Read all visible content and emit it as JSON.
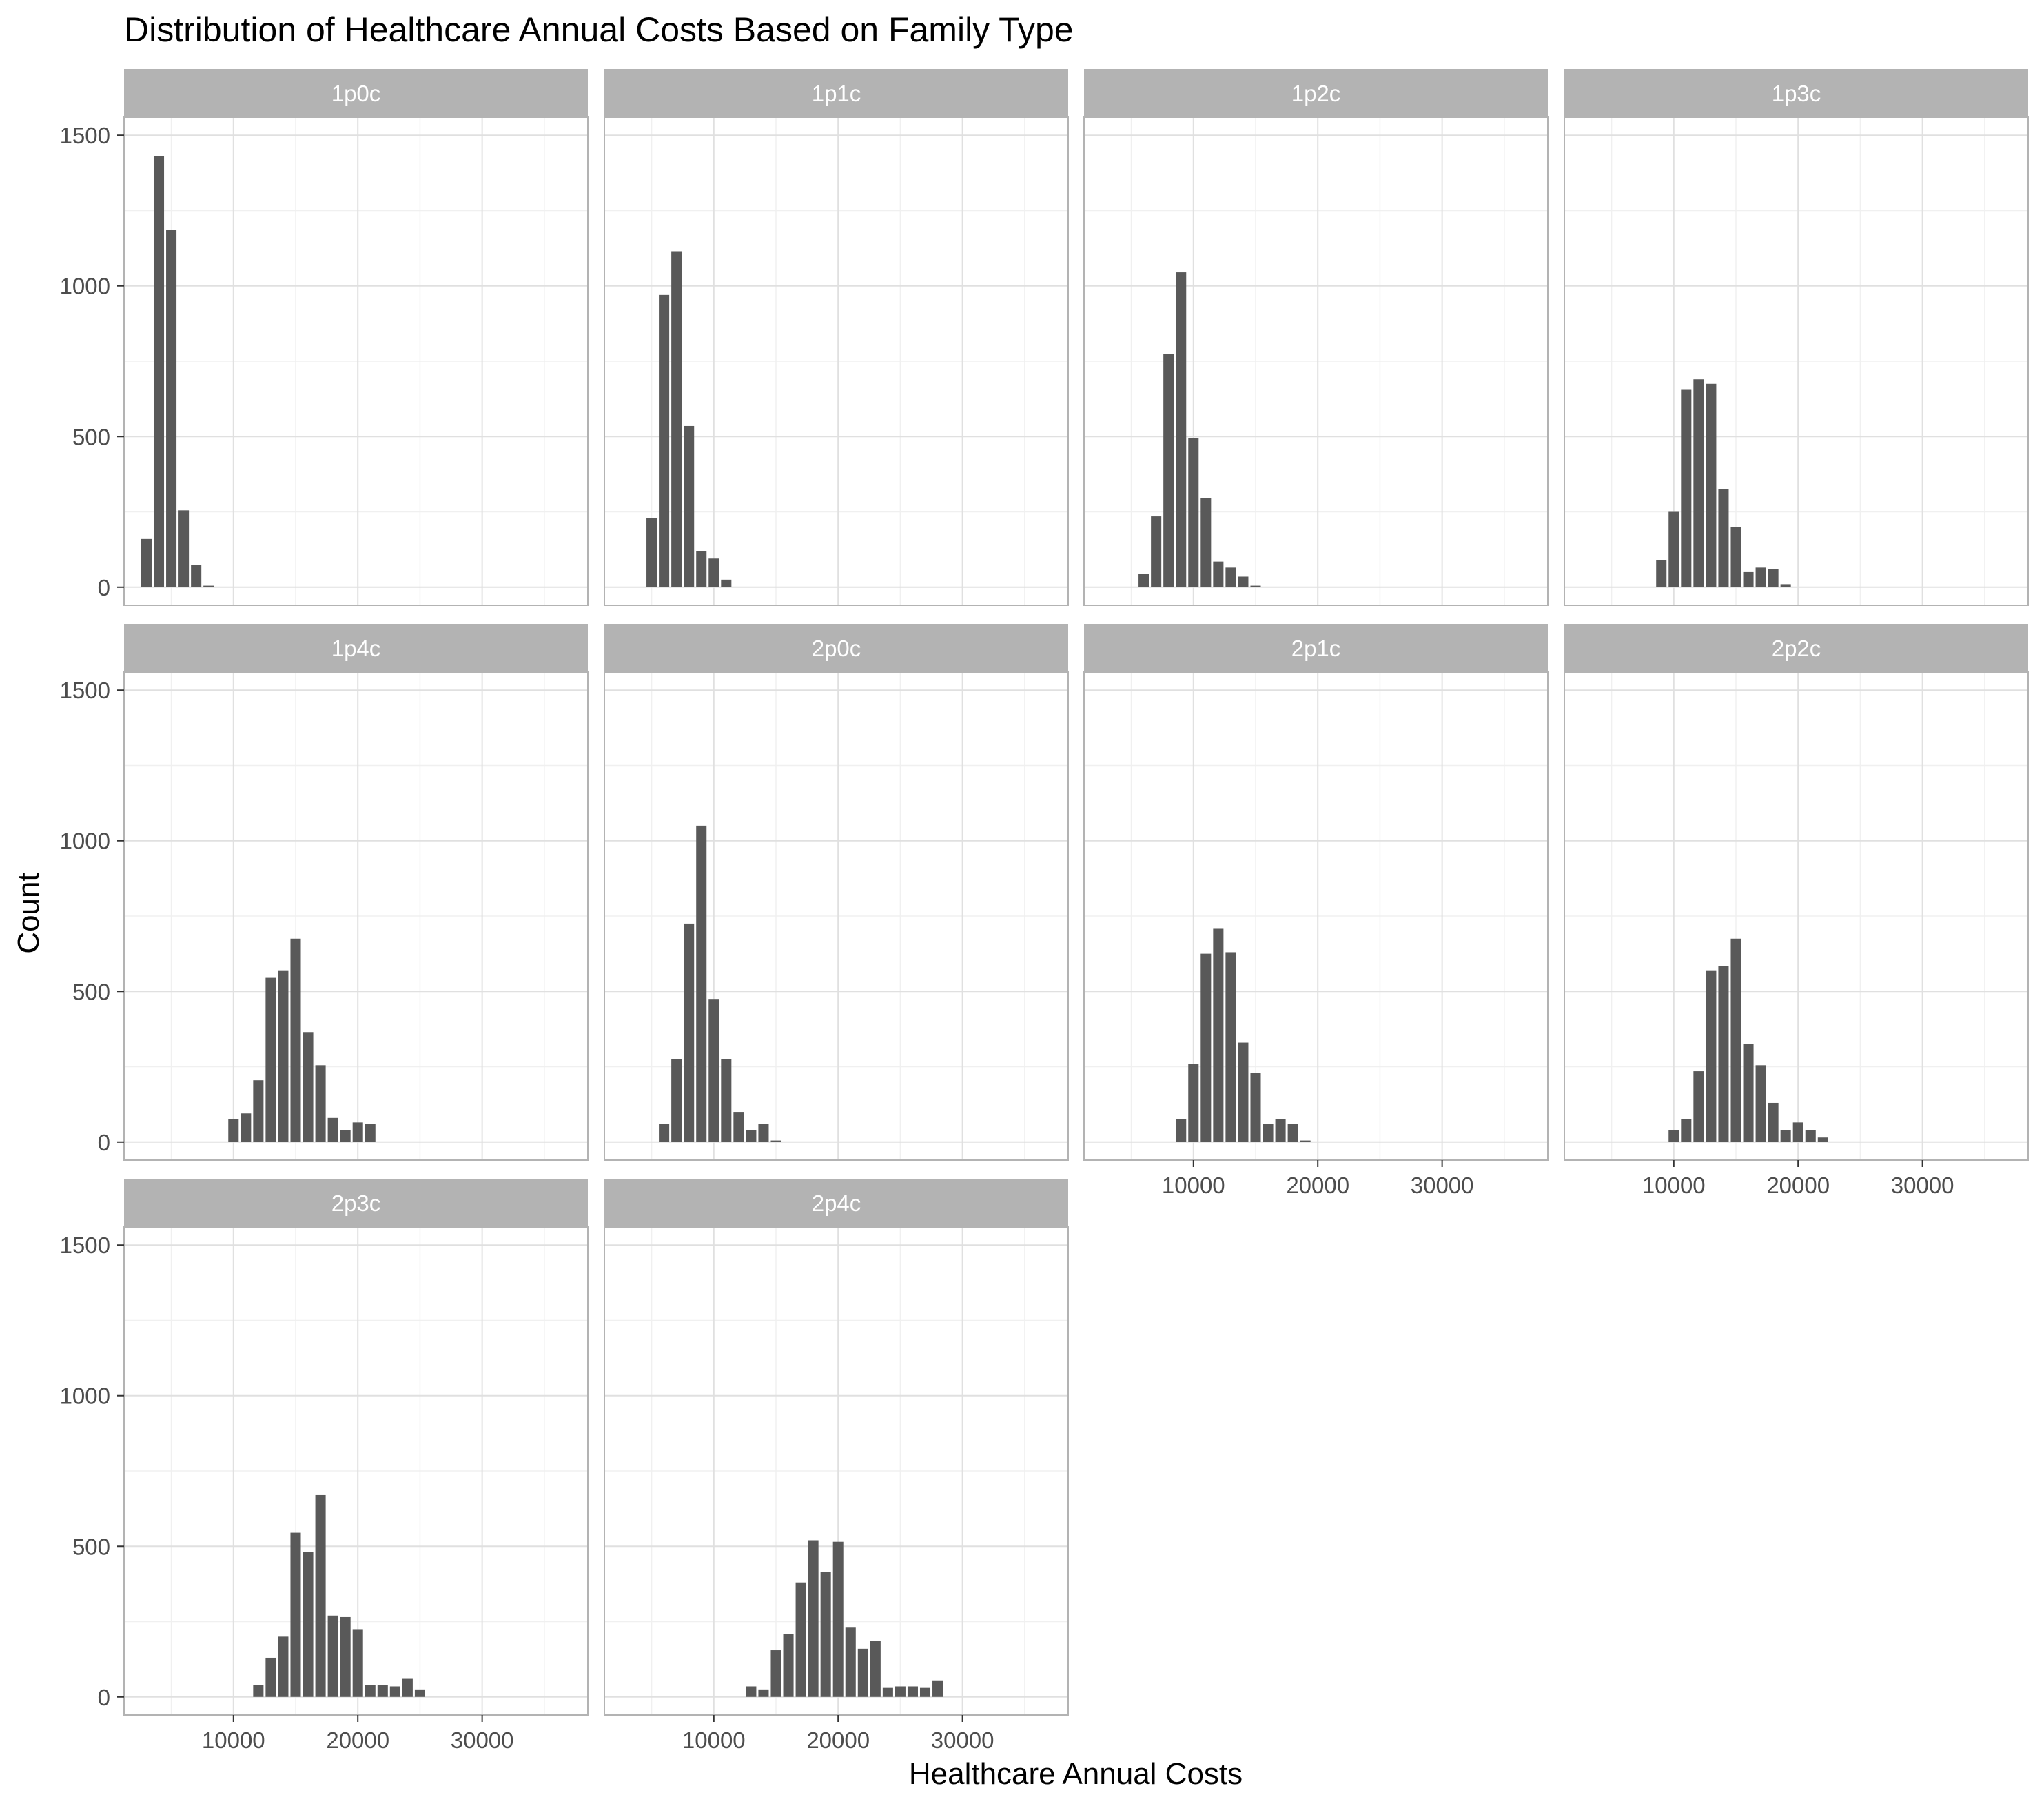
{
  "chart_data": {
    "type": "bar",
    "subtype": "faceted-histogram",
    "title": "Distribution of Healthcare Annual Costs Based on Family Type",
    "xlabel": "Healthcare Annual Costs",
    "ylabel": "Count",
    "xlim": [
      1200,
      38500
    ],
    "ylim": [
      -60,
      1560
    ],
    "x_ticks": [
      10000,
      20000,
      30000
    ],
    "y_ticks": [
      0,
      500,
      1000,
      1500
    ],
    "bin_width": 1000,
    "grid": true,
    "legend": "none",
    "colors": {
      "bar": "#595959",
      "strip": "#b3b3b3",
      "strip_text": "#ffffff",
      "panel_border": "#b3b3b3",
      "grid_major": "#e0e0e0",
      "grid_minor": "#f0f0f0"
    },
    "facets": [
      {
        "label": "1p0c",
        "bins": [
          {
            "x": 3000,
            "y": 160
          },
          {
            "x": 4000,
            "y": 1430
          },
          {
            "x": 5000,
            "y": 1185
          },
          {
            "x": 6000,
            "y": 255
          },
          {
            "x": 7000,
            "y": 75
          },
          {
            "x": 8000,
            "y": 5
          }
        ]
      },
      {
        "label": "1p1c",
        "bins": [
          {
            "x": 5000,
            "y": 230
          },
          {
            "x": 6000,
            "y": 970
          },
          {
            "x": 7000,
            "y": 1115
          },
          {
            "x": 8000,
            "y": 535
          },
          {
            "x": 9000,
            "y": 120
          },
          {
            "x": 10000,
            "y": 95
          },
          {
            "x": 11000,
            "y": 25
          }
        ]
      },
      {
        "label": "1p2c",
        "bins": [
          {
            "x": 6000,
            "y": 45
          },
          {
            "x": 7000,
            "y": 235
          },
          {
            "x": 8000,
            "y": 775
          },
          {
            "x": 9000,
            "y": 1045
          },
          {
            "x": 10000,
            "y": 495
          },
          {
            "x": 11000,
            "y": 295
          },
          {
            "x": 12000,
            "y": 85
          },
          {
            "x": 13000,
            "y": 65
          },
          {
            "x": 14000,
            "y": 35
          },
          {
            "x": 15000,
            "y": 5
          }
        ]
      },
      {
        "label": "1p3c",
        "bins": [
          {
            "x": 9000,
            "y": 90
          },
          {
            "x": 10000,
            "y": 250
          },
          {
            "x": 11000,
            "y": 655
          },
          {
            "x": 12000,
            "y": 690
          },
          {
            "x": 13000,
            "y": 675
          },
          {
            "x": 14000,
            "y": 325
          },
          {
            "x": 15000,
            "y": 200
          },
          {
            "x": 16000,
            "y": 50
          },
          {
            "x": 17000,
            "y": 65
          },
          {
            "x": 18000,
            "y": 60
          },
          {
            "x": 19000,
            "y": 10
          }
        ]
      },
      {
        "label": "1p4c",
        "bins": [
          {
            "x": 10000,
            "y": 75
          },
          {
            "x": 11000,
            "y": 95
          },
          {
            "x": 12000,
            "y": 205
          },
          {
            "x": 13000,
            "y": 545
          },
          {
            "x": 14000,
            "y": 570
          },
          {
            "x": 15000,
            "y": 675
          },
          {
            "x": 16000,
            "y": 365
          },
          {
            "x": 17000,
            "y": 255
          },
          {
            "x": 18000,
            "y": 80
          },
          {
            "x": 19000,
            "y": 40
          },
          {
            "x": 20000,
            "y": 65
          },
          {
            "x": 21000,
            "y": 60
          }
        ]
      },
      {
        "label": "2p0c",
        "bins": [
          {
            "x": 6000,
            "y": 60
          },
          {
            "x": 7000,
            "y": 275
          },
          {
            "x": 8000,
            "y": 725
          },
          {
            "x": 9000,
            "y": 1050
          },
          {
            "x": 10000,
            "y": 475
          },
          {
            "x": 11000,
            "y": 275
          },
          {
            "x": 12000,
            "y": 100
          },
          {
            "x": 13000,
            "y": 40
          },
          {
            "x": 14000,
            "y": 60
          },
          {
            "x": 15000,
            "y": 5
          }
        ]
      },
      {
        "label": "2p1c",
        "bins": [
          {
            "x": 9000,
            "y": 75
          },
          {
            "x": 10000,
            "y": 260
          },
          {
            "x": 11000,
            "y": 625
          },
          {
            "x": 12000,
            "y": 710
          },
          {
            "x": 13000,
            "y": 630
          },
          {
            "x": 14000,
            "y": 330
          },
          {
            "x": 15000,
            "y": 230
          },
          {
            "x": 16000,
            "y": 60
          },
          {
            "x": 17000,
            "y": 75
          },
          {
            "x": 18000,
            "y": 60
          },
          {
            "x": 19000,
            "y": 5
          }
        ]
      },
      {
        "label": "2p2c",
        "bins": [
          {
            "x": 10000,
            "y": 40
          },
          {
            "x": 11000,
            "y": 75
          },
          {
            "x": 12000,
            "y": 235
          },
          {
            "x": 13000,
            "y": 570
          },
          {
            "x": 14000,
            "y": 585
          },
          {
            "x": 15000,
            "y": 675
          },
          {
            "x": 16000,
            "y": 325
          },
          {
            "x": 17000,
            "y": 255
          },
          {
            "x": 18000,
            "y": 130
          },
          {
            "x": 19000,
            "y": 40
          },
          {
            "x": 20000,
            "y": 65
          },
          {
            "x": 21000,
            "y": 40
          },
          {
            "x": 22000,
            "y": 15
          }
        ]
      },
      {
        "label": "2p3c",
        "bins": [
          {
            "x": 12000,
            "y": 40
          },
          {
            "x": 13000,
            "y": 130
          },
          {
            "x": 14000,
            "y": 200
          },
          {
            "x": 15000,
            "y": 545
          },
          {
            "x": 16000,
            "y": 480
          },
          {
            "x": 17000,
            "y": 670
          },
          {
            "x": 18000,
            "y": 270
          },
          {
            "x": 19000,
            "y": 265
          },
          {
            "x": 20000,
            "y": 225
          },
          {
            "x": 21000,
            "y": 40
          },
          {
            "x": 22000,
            "y": 40
          },
          {
            "x": 23000,
            "y": 35
          },
          {
            "x": 24000,
            "y": 60
          },
          {
            "x": 25000,
            "y": 25
          }
        ]
      },
      {
        "label": "2p4c",
        "bins": [
          {
            "x": 13000,
            "y": 35
          },
          {
            "x": 14000,
            "y": 25
          },
          {
            "x": 15000,
            "y": 155
          },
          {
            "x": 16000,
            "y": 210
          },
          {
            "x": 17000,
            "y": 380
          },
          {
            "x": 18000,
            "y": 520
          },
          {
            "x": 19000,
            "y": 415
          },
          {
            "x": 20000,
            "y": 515
          },
          {
            "x": 21000,
            "y": 230
          },
          {
            "x": 22000,
            "y": 160
          },
          {
            "x": 23000,
            "y": 185
          },
          {
            "x": 24000,
            "y": 30
          },
          {
            "x": 25000,
            "y": 35
          },
          {
            "x": 26000,
            "y": 35
          },
          {
            "x": 27000,
            "y": 30
          },
          {
            "x": 28000,
            "y": 55
          }
        ]
      }
    ]
  }
}
